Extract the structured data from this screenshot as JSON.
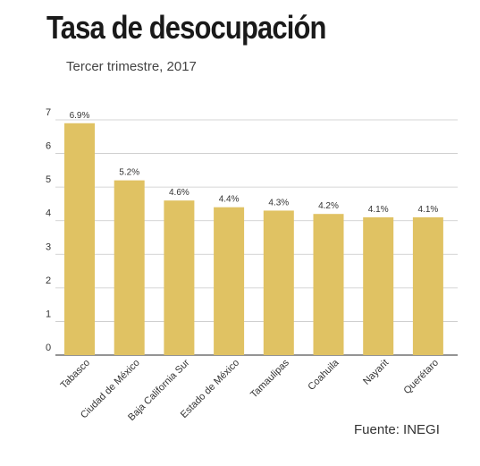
{
  "header": {
    "title": "Tasa de desocupación",
    "subtitle": "Tercer trimestre, 2017"
  },
  "footer": {
    "source": "Fuente: INEGI"
  },
  "chart_data": {
    "type": "bar",
    "title": "Tasa de desocupación",
    "subtitle": "Tercer trimestre, 2017",
    "xlabel": "",
    "ylabel": "",
    "categories": [
      "Tabasco",
      "Ciudad de México",
      "Baja California Sur",
      "Estado de México",
      "Tamaulipas",
      "Coahuila",
      "Nayarit",
      "Querétaro"
    ],
    "values": [
      6.9,
      5.2,
      4.6,
      4.4,
      4.3,
      4.2,
      4.1,
      4.1
    ],
    "data_labels": [
      "6.9%",
      "5.2%",
      "4.6%",
      "4.4%",
      "4.3%",
      "4.2%",
      "4.1%",
      "4.1%"
    ],
    "ylim": [
      0,
      7
    ],
    "yticks": [
      "0",
      "1",
      "2",
      "3",
      "4",
      "5",
      "6",
      "7"
    ],
    "grid": true,
    "legend": "none",
    "colors": {
      "bar": "#e0c263",
      "grid": "#c8c8c8",
      "axis": "#555555",
      "text": "#333333"
    }
  }
}
